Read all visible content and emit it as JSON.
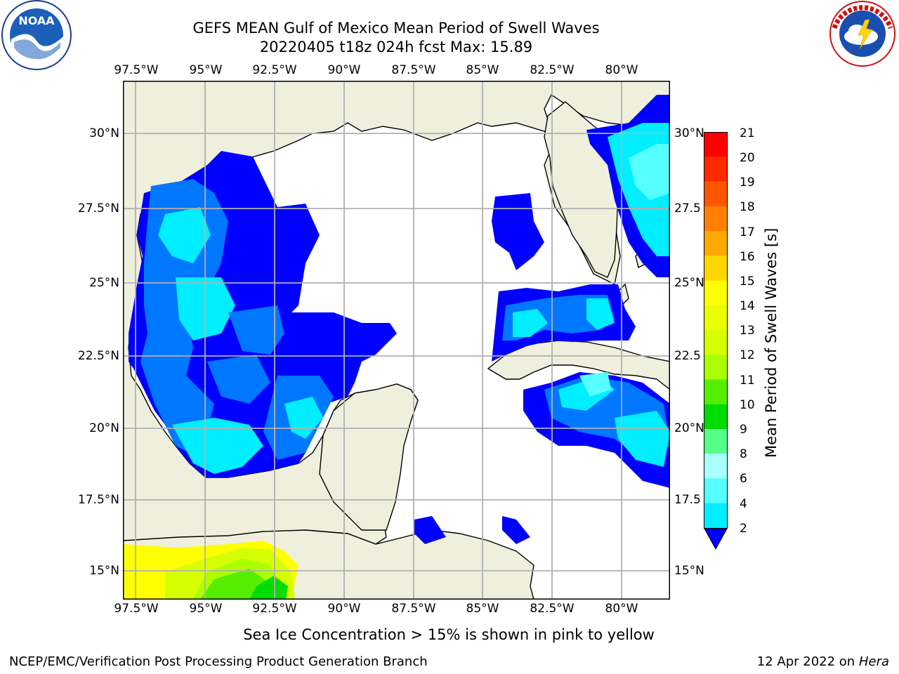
{
  "header": {
    "title_line1": "GEFS MEAN Gulf of Mexico Mean Period of Swell Waves",
    "title_line2": "20220405 t18z 024h fcst   Max: 15.89"
  },
  "logos": {
    "left": "NOAA",
    "left_ring": "NATIONAL OCEANIC AND ATMOSPHERIC ADMINISTRATION · U.S. DEPARTMENT OF COMMERCE",
    "right_ring": "NATIONAL WEATHER SERVICE"
  },
  "map": {
    "lon_labels": [
      "97.5°W",
      "95°W",
      "92.5°W",
      "90°W",
      "87.5°W",
      "85°W",
      "82.5°W",
      "80°W"
    ],
    "lat_labels_left": [
      "30°N",
      "27.5°N",
      "25°N",
      "22.5°N",
      "20°N",
      "17.5°N",
      "15°N"
    ],
    "lat_labels_right": [
      "30°N",
      "27.5",
      "25°N",
      "22.5",
      "20°N",
      "17.5",
      "15°N"
    ],
    "colors": {
      "land": "#efefde",
      "grid": "#b0b0b0",
      "coast": "#000000"
    }
  },
  "colorbar": {
    "title": "Mean Period of Swell Waves [s]",
    "labels": [
      "21",
      "20",
      "19",
      "18",
      "17",
      "16",
      "15",
      "14",
      "13",
      "12",
      "11",
      "10",
      "9",
      "8",
      "6",
      "4",
      "2"
    ],
    "colors": [
      "#ff0000",
      "#ff2a00",
      "#ff5500",
      "#ff8000",
      "#ffaa00",
      "#ffd500",
      "#ffff00",
      "#eaff00",
      "#d5ff00",
      "#aaff00",
      "#55ee00",
      "#00dd00",
      "#55ff88",
      "#aaffff",
      "#55ffff",
      "#00eeff",
      "#0077ff"
    ],
    "under_color": "#0000ff"
  },
  "footer": {
    "note": "Sea Ice Concentration > 15% is shown in pink to yellow",
    "left": "NCEP/EMC/Verification Post Processing Product Generation Branch",
    "right_prefix": "12 Apr 2022 on ",
    "right_host": "Hera"
  }
}
